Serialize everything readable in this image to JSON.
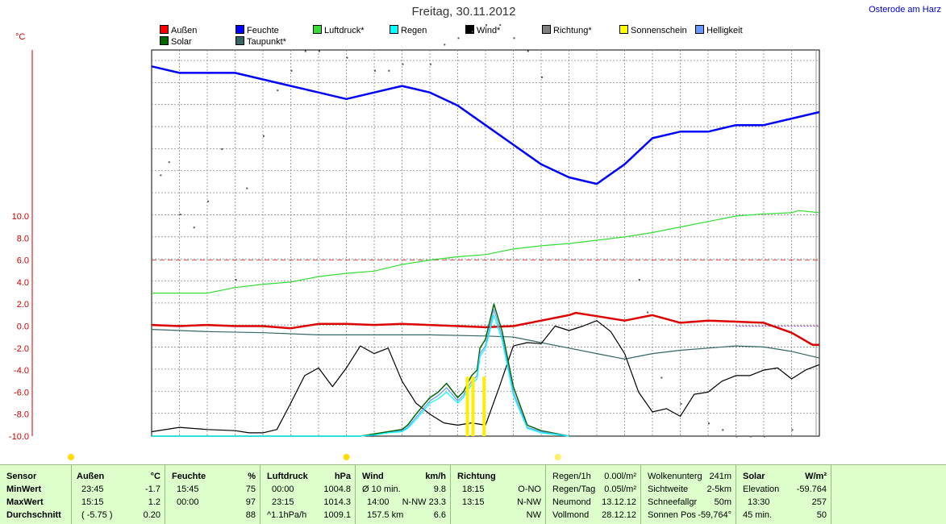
{
  "title": "Freitag, 30.11.2012",
  "location": "Osterode am Harz",
  "y_unit": "°C",
  "legend": [
    {
      "name": "Außen",
      "color": "#ff0000"
    },
    {
      "name": "Feuchte",
      "color": "#0000ff"
    },
    {
      "name": "Luftdruck*",
      "color": "#33dd33"
    },
    {
      "name": "Regen",
      "color": "#00ffff"
    },
    {
      "name": "Wind*",
      "color": "#000000"
    },
    {
      "name": "Richtung*",
      "color": "#808080"
    },
    {
      "name": "Sonnenschein",
      "color": "#ffff00"
    },
    {
      "name": "Helligkeit",
      "color": "#6699ff"
    },
    {
      "name": "Solar",
      "color": "#006600"
    },
    {
      "name": "Taupunkt*",
      "color": "#336666"
    }
  ],
  "chart_data": {
    "type": "line",
    "title": "Freitag, 30.11.2012",
    "ylabel": "°C",
    "ylim": [
      -10,
      10
    ],
    "yticks": [
      "10.0",
      "8.0",
      "6.0",
      "4.0",
      "2.0",
      "0.0",
      "-2.0",
      "-4.0",
      "-6.0",
      "-8.0",
      "-10.0"
    ],
    "x_hours": [
      0,
      24
    ],
    "reference_line": 6,
    "series": [
      {
        "name": "Außen",
        "color": "#dd0000",
        "hours": [
          0,
          1,
          2,
          3,
          4,
          5,
          6,
          7,
          8,
          9,
          10,
          11,
          12,
          13,
          14,
          15,
          15.25,
          16,
          17,
          18,
          19,
          20,
          21,
          22,
          23,
          23.75,
          24
        ],
        "values": [
          0.1,
          0.0,
          0.1,
          0.0,
          0.0,
          -0.2,
          0.2,
          0.2,
          0.1,
          0.2,
          0.1,
          0.0,
          -0.1,
          0.0,
          0.5,
          1.0,
          1.2,
          0.9,
          0.5,
          1.0,
          0.3,
          0.5,
          0.4,
          0.3,
          -0.6,
          -1.7,
          -1.7
        ]
      },
      {
        "name": "Feuchte",
        "color": "#0000ff",
        "hours": [
          0,
          1,
          2,
          3,
          4,
          5,
          6,
          7,
          8,
          9,
          10,
          11,
          12,
          13,
          14,
          15,
          16,
          17,
          18,
          19,
          20,
          21,
          22,
          23,
          24
        ],
        "values": [
          97,
          96,
          96,
          96,
          95,
          94,
          93,
          92,
          93,
          94,
          93,
          91,
          88,
          85,
          82,
          80,
          79,
          82,
          86,
          87,
          87,
          88,
          88,
          89,
          90
        ]
      },
      {
        "name": "Luftdruck*",
        "color": "#33dd33",
        "hours": [
          0,
          1,
          2,
          3,
          4,
          5,
          6,
          7,
          8,
          9,
          10,
          11,
          12,
          13,
          14,
          15,
          16,
          17,
          18,
          19,
          20,
          21,
          22,
          23,
          23.25,
          24
        ],
        "values": [
          3.0,
          3.0,
          3.0,
          3.5,
          3.8,
          4.0,
          4.5,
          4.8,
          5.0,
          5.6,
          6.0,
          6.3,
          6.5,
          7.0,
          7.3,
          7.5,
          7.8,
          8.1,
          8.5,
          9.0,
          9.5,
          10.0,
          10.2,
          10.3,
          10.5,
          10.3
        ]
      },
      {
        "name": "Taupunkt*",
        "color": "#336666",
        "hours": [
          0,
          2,
          4,
          6,
          8,
          10,
          12,
          13,
          14,
          15,
          16,
          17,
          18,
          19,
          20,
          21,
          22,
          23,
          24
        ],
        "values": [
          -0.3,
          -0.5,
          -0.6,
          -0.8,
          -0.8,
          -0.8,
          -0.9,
          -1.0,
          -1.5,
          -2.0,
          -2.5,
          -3.0,
          -2.5,
          -2.2,
          -2.0,
          -1.8,
          -1.9,
          -2.3,
          -2.9
        ]
      },
      {
        "name": "Wind*",
        "color": "#000000",
        "hours": [
          0,
          1,
          2,
          3,
          3.5,
          4,
          4.5,
          5,
          5.5,
          6,
          6.5,
          7,
          7.5,
          8,
          8.5,
          9,
          9.5,
          10,
          10.5,
          11,
          11.5,
          12,
          12.5,
          13,
          13.5,
          14,
          14.5,
          15,
          15.5,
          16,
          16.5,
          17,
          17.5,
          18,
          18.5,
          19,
          19.5,
          20,
          20.5,
          21,
          21.5,
          22,
          22.5,
          23,
          23.5,
          24
        ],
        "values": [
          -9.6,
          -9.2,
          -9.4,
          -9.5,
          -9.7,
          -9.7,
          -9.4,
          -7.0,
          -4.5,
          -3.8,
          -5.5,
          -3.8,
          -1.8,
          -2.5,
          -2.0,
          -5.0,
          -7.0,
          -8.0,
          -8.8,
          -9.0,
          -8.8,
          -9.0,
          -5.5,
          -1.8,
          -1.5,
          -1.6,
          0.0,
          -0.4,
          0.0,
          0.5,
          -0.5,
          -2.5,
          -6.0,
          -7.8,
          -7.5,
          -8.2,
          -6.2,
          -6.0,
          -5.0,
          -4.5,
          -4.5,
          -4.0,
          -3.8,
          -4.8,
          -4.0,
          -3.5
        ]
      },
      {
        "name": "Solar",
        "color": "#006600",
        "hours": [
          0,
          6.8,
          7.5,
          8,
          8.5,
          9,
          9.2,
          9.5,
          10,
          10.3,
          10.6,
          11,
          11.2,
          11.5,
          11.7,
          11.8,
          12,
          12.3,
          12.6,
          13,
          13.5,
          14,
          15
        ],
        "values": [
          -10,
          -10,
          -10,
          -9.8,
          -9.6,
          -9.4,
          -9.0,
          -8.0,
          -6.5,
          -6.0,
          -5.2,
          -6.5,
          -6.0,
          -4.5,
          -4.0,
          -2.0,
          -1.2,
          2.0,
          -0.5,
          -5.5,
          -9.0,
          -9.5,
          -10
        ]
      },
      {
        "name": "Helligkeit",
        "color": "#6699ff",
        "hours": [
          0,
          6.8,
          7.5,
          8,
          8.5,
          9,
          9.2,
          9.5,
          10,
          10.3,
          10.6,
          11,
          11.2,
          11.5,
          11.7,
          11.8,
          12,
          12.3,
          12.6,
          13,
          13.5,
          14,
          15
        ],
        "values": [
          -10,
          -10,
          -10,
          -9.9,
          -9.7,
          -9.5,
          -9.2,
          -8.3,
          -6.8,
          -6.3,
          -5.6,
          -6.8,
          -6.3,
          -5.0,
          -4.5,
          -2.5,
          -1.8,
          1.5,
          -1.0,
          -6.0,
          -9.2,
          -9.6,
          -10
        ]
      },
      {
        "name": "Regen",
        "color": "#00ffff",
        "hours": [
          0,
          6.7,
          7.5,
          8,
          8.5,
          9,
          9.2,
          9.5,
          10,
          10.3,
          10.6,
          11,
          11.2,
          11.5,
          11.7,
          11.8,
          12,
          12.3,
          12.6,
          13,
          13.5,
          14,
          15
        ],
        "values": [
          -10,
          -10,
          -10,
          -9.9,
          -9.7,
          -9.6,
          -9.3,
          -8.5,
          -7.0,
          -6.6,
          -6.0,
          -7.0,
          -6.5,
          -5.3,
          -4.8,
          -2.8,
          -2.0,
          1.0,
          -1.3,
          -6.3,
          -9.3,
          -9.7,
          -10
        ]
      }
    ],
    "sunshine_bars_hours": [
      11.35,
      11.55,
      11.95
    ],
    "sunshine_top": -4.6,
    "richtung_points": [
      [
        0.3,
        76
      ],
      [
        0.6,
        78
      ],
      [
        1,
        70
      ],
      [
        1.5,
        68
      ],
      [
        2,
        72
      ],
      [
        2.5,
        80
      ],
      [
        3,
        60
      ],
      [
        3.4,
        74
      ],
      [
        4,
        82
      ],
      [
        4.5,
        89
      ],
      [
        5,
        92
      ],
      [
        5.5,
        95
      ],
      [
        6,
        95
      ],
      [
        7,
        94
      ],
      [
        8,
        92
      ],
      [
        8.5,
        92
      ],
      [
        9,
        93
      ],
      [
        10,
        93
      ],
      [
        10.5,
        96
      ],
      [
        11,
        97
      ],
      [
        11.5,
        98
      ],
      [
        12,
        99
      ],
      [
        12.5,
        99
      ],
      [
        13,
        97
      ],
      [
        13.5,
        95
      ],
      [
        14,
        91
      ],
      [
        17.5,
        60
      ],
      [
        17.8,
        55
      ],
      [
        18.3,
        45
      ],
      [
        19,
        41
      ],
      [
        20,
        38
      ],
      [
        20.5,
        37
      ],
      [
        21,
        36
      ],
      [
        21.5,
        36
      ],
      [
        22,
        36
      ],
      [
        23,
        37
      ]
    ]
  },
  "markers": [
    {
      "hour": 0,
      "color": "#ffdd00"
    },
    {
      "hour": 9.9,
      "color": "#ffdd00"
    },
    {
      "hour": 17.5,
      "color": "#ffee66"
    }
  ],
  "table": {
    "sensor": {
      "head": "Sensor",
      "rows": [
        "MinWert",
        "MaxWert",
        "Durchschnitt"
      ]
    },
    "aussen": {
      "head": "Außen",
      "unit": "°C",
      "rows": [
        [
          "23:45",
          "-1.7"
        ],
        [
          "15:15",
          "1.2"
        ],
        [
          "( -5.75 )",
          "0.20"
        ]
      ]
    },
    "feuchte": {
      "head": "Feuchte",
      "unit": "%",
      "rows": [
        [
          "15:45",
          "75"
        ],
        [
          "00:00",
          "97"
        ],
        [
          "",
          "88"
        ]
      ]
    },
    "luftdruck": {
      "head": "Luftdruck",
      "unit": "hPa",
      "rows": [
        [
          "00:00",
          "1004.8"
        ],
        [
          "23:15",
          "1014.3"
        ],
        [
          "^1.1hPa/h",
          "1009.1"
        ]
      ]
    },
    "wind": {
      "head": "Wind",
      "unit": "km/h",
      "rows": [
        [
          "Ø 10 min.",
          "9.8"
        ],
        [
          "14:00",
          "N-NW 23.3"
        ],
        [
          "157.5 km",
          "6.6"
        ]
      ]
    },
    "richtung": {
      "head": "Richtung",
      "rows": [
        [
          "18:15",
          "O-NO"
        ],
        [
          "13:15",
          "N-NW"
        ],
        [
          "",
          "NW"
        ]
      ]
    },
    "regen": {
      "rows": [
        [
          "Regen/1h",
          "0.00l/m²"
        ],
        [
          "Regen/Tag",
          "0.05l/m²"
        ],
        [
          "Neumond",
          "13.12.12"
        ],
        [
          "Vollmond",
          "28.12.12"
        ]
      ]
    },
    "wolken": {
      "rows": [
        [
          "Wolkenunterg",
          "241m"
        ],
        [
          "Sichtweite",
          "2-5km"
        ],
        [
          "Schneefallgr",
          "50m"
        ],
        [
          "Sonnen Pos",
          "-59,764°"
        ]
      ]
    },
    "solar": {
      "head": "Solar",
      "unit": "W/m²",
      "rows": [
        [
          "Elevation",
          "-59.764"
        ],
        [
          "13:30",
          "257"
        ],
        [
          "45 min.",
          "50"
        ]
      ]
    }
  }
}
